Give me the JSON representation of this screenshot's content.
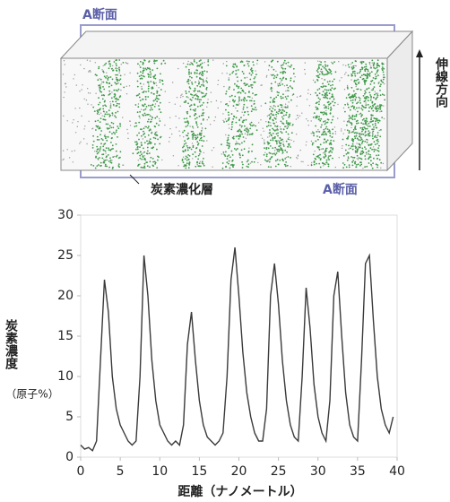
{
  "diagram": {
    "top_label": "A断面",
    "bottom_label": "A断面",
    "layer_label": "炭素濃化層",
    "direction_label": "伸線方向"
  },
  "chart_data": {
    "type": "line",
    "y_label": "炭素濃度",
    "y_unit": "（原子%）",
    "x_label": "距離（ナノメートル）",
    "xlim": [
      0,
      40
    ],
    "ylim": [
      0,
      30
    ],
    "xticks": [
      0,
      5,
      10,
      15,
      20,
      25,
      30,
      35,
      40
    ],
    "yticks": [
      0,
      5,
      10,
      15,
      20,
      25,
      30
    ],
    "x": [
      0,
      0.5,
      1,
      1.5,
      2,
      2.5,
      3,
      3.5,
      4,
      4.5,
      5,
      5.5,
      6,
      6.5,
      7,
      7.5,
      8,
      8.5,
      9,
      9.5,
      10,
      10.5,
      11,
      11.5,
      12,
      12.5,
      13,
      13.5,
      14,
      14.5,
      15,
      15.5,
      16,
      16.5,
      17,
      17.5,
      18,
      18.5,
      19,
      19.5,
      20,
      20.5,
      21,
      21.5,
      22,
      22.5,
      23,
      23.5,
      24,
      24.5,
      25,
      25.5,
      26,
      26.5,
      27,
      27.5,
      28,
      28.5,
      29,
      29.5,
      30,
      30.5,
      31,
      31.5,
      32,
      32.5,
      33,
      33.5,
      34,
      34.5,
      35,
      35.5,
      36,
      36.5,
      37,
      37.5,
      38,
      38.5,
      39,
      39.5
    ],
    "series": [
      {
        "color": "#3a3a3a",
        "values": [
          1.5,
          1,
          1.2,
          0.8,
          2,
          12,
          22,
          18,
          10,
          6,
          4,
          3,
          2,
          1.5,
          2,
          10,
          25,
          20,
          12,
          7,
          4,
          3,
          2,
          1.5,
          2,
          1.5,
          4,
          14,
          18,
          12,
          7,
          4,
          2.5,
          2,
          1.5,
          2,
          3,
          10,
          22,
          26,
          20,
          13,
          8,
          5,
          3,
          2,
          2,
          6,
          20,
          24,
          19,
          12,
          7,
          4,
          2.5,
          2,
          10,
          21,
          16,
          9,
          5,
          3,
          2,
          7,
          20,
          23,
          15,
          8,
          4,
          2.5,
          2,
          12,
          24,
          25,
          17,
          10,
          6,
          4,
          3,
          5
        ]
      }
    ]
  }
}
